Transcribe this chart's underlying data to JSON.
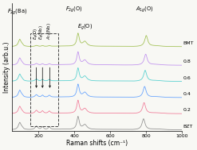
{
  "xlabel": "Raman shifts (cm⁻¹)",
  "ylabel": "Intensity (arb.u.)",
  "xlim": [
    50,
    1000
  ],
  "series_labels": [
    "BZT",
    "0.2",
    "0.4",
    "0.6",
    "0.8",
    "BMT"
  ],
  "series_colors": [
    "#888888",
    "#f07090",
    "#5599ff",
    "#44cccc",
    "#bb88ee",
    "#99bb44"
  ],
  "offsets": [
    0.0,
    0.13,
    0.26,
    0.39,
    0.52,
    0.67
  ],
  "peak_scale": [
    1.0,
    1.0,
    1.0,
    1.0,
    1.0,
    1.15
  ],
  "background_color": "#f8f8f4"
}
